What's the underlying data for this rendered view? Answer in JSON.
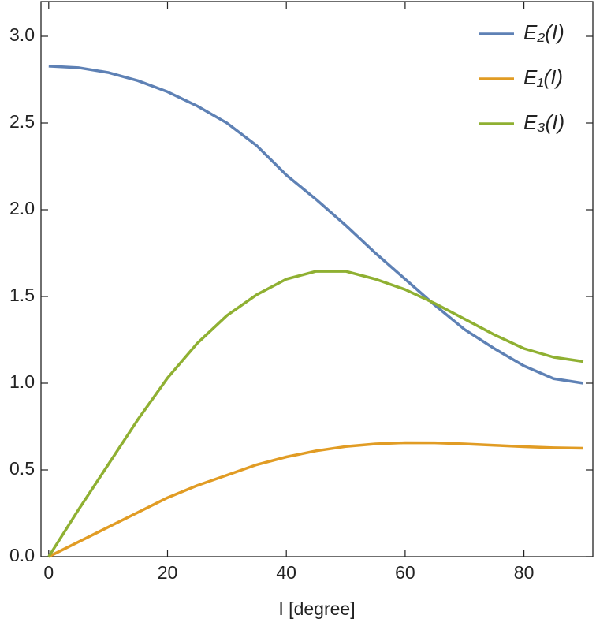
{
  "chart_data": {
    "type": "line",
    "xlabel": "I [degree]",
    "x": [
      0,
      5,
      10,
      15,
      20,
      25,
      30,
      35,
      40,
      45,
      50,
      55,
      60,
      65,
      70,
      75,
      80,
      85,
      90
    ],
    "series": [
      {
        "name": "E₂(I)",
        "color": "#5e81b5",
        "values": [
          2.828,
          2.819,
          2.791,
          2.744,
          2.68,
          2.598,
          2.5,
          2.37,
          2.2,
          2.06,
          1.91,
          1.75,
          1.6,
          1.45,
          1.31,
          1.2,
          1.1,
          1.026,
          1.0
        ]
      },
      {
        "name": "E₁(I)",
        "color": "#e19c24",
        "values": [
          0,
          0.085,
          0.17,
          0.255,
          0.34,
          0.41,
          0.47,
          0.53,
          0.575,
          0.61,
          0.635,
          0.65,
          0.657,
          0.656,
          0.65,
          0.642,
          0.634,
          0.628,
          0.625
        ]
      },
      {
        "name": "E₃(I)",
        "color": "#8fb032",
        "values": [
          0,
          0.27,
          0.53,
          0.79,
          1.03,
          1.23,
          1.39,
          1.51,
          1.6,
          1.645,
          1.645,
          1.6,
          1.54,
          1.46,
          1.37,
          1.28,
          1.2,
          1.15,
          1.125
        ]
      }
    ],
    "xlim": [
      -1.3,
      91.6
    ],
    "xticks": [
      0,
      20,
      40,
      60,
      80
    ],
    "ylim": [
      0,
      3.2
    ],
    "yticks": [
      {
        "value": 0,
        "label": "0.0"
      },
      0.5,
      {
        "value": 1,
        "label": "1.0"
      },
      1.5,
      {
        "value": 2,
        "label": "2.0"
      },
      2.5,
      {
        "value": 3,
        "label": "3.0"
      }
    ],
    "legend": "top-right",
    "grid": false
  }
}
